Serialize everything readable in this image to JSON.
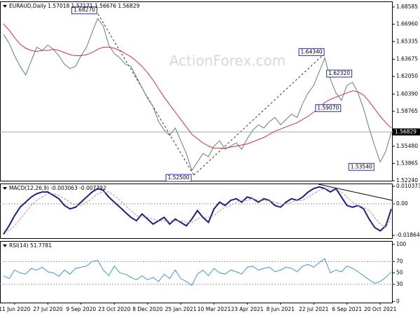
{
  "chart_data": [
    {
      "type": "line",
      "title": "EURAUD,Daily  1.57018 1.57171 1.56676 1.56829",
      "watermark": "ActionForex.com",
      "xlim": [
        0,
        70
      ],
      "ylim": [
        1.5224,
        1.6911
      ],
      "yticks": [
        {
          "value": 1.68585,
          "label": "1.68585"
        },
        {
          "value": 1.6696,
          "label": "1.66960"
        },
        {
          "value": 1.65335,
          "label": "1.65335"
        },
        {
          "value": 1.63675,
          "label": "1.63675"
        },
        {
          "value": 1.6205,
          "label": "1.62050"
        },
        {
          "value": 1.6039,
          "label": "1.60390"
        },
        {
          "value": 1.58765,
          "label": "1.58765"
        },
        {
          "value": 1.5548,
          "label": "1.55480"
        },
        {
          "value": 1.53865,
          "label": "1.53865"
        },
        {
          "value": 1.5224,
          "label": "1.52240"
        }
      ],
      "last_value": 1.56829,
      "annotations": [
        {
          "x": 17,
          "value": 1.6827,
          "label": "1.68270"
        },
        {
          "x": 34,
          "value": 1.525,
          "label": "1.52500"
        },
        {
          "x": 58,
          "value": 1.6434,
          "label": "1.64340"
        },
        {
          "x": 63,
          "value": 1.6232,
          "label": "1.62320"
        },
        {
          "x": 61,
          "value": 1.5907,
          "label": "1.59070"
        },
        {
          "x": 67,
          "value": 1.5354,
          "label": "1.53540"
        }
      ],
      "series": [
        {
          "name": "EURAUD",
          "color": "#5e7f8d",
          "values": [
            1.66,
            1.652,
            1.64,
            1.63,
            1.622,
            1.635,
            1.648,
            1.645,
            1.65,
            1.646,
            1.64,
            1.632,
            1.628,
            1.63,
            1.64,
            1.648,
            1.662,
            1.675,
            1.668,
            1.65,
            1.642,
            1.638,
            1.632,
            1.63,
            1.62,
            1.61,
            1.6,
            1.592,
            1.578,
            1.57,
            1.565,
            1.572,
            1.56,
            1.548,
            1.532,
            1.54,
            1.548,
            1.545,
            1.555,
            1.56,
            1.552,
            1.555,
            1.558,
            1.552,
            1.562,
            1.57,
            1.575,
            1.572,
            1.578,
            1.582,
            1.575,
            1.58,
            1.585,
            1.582,
            1.595,
            1.605,
            1.612,
            1.625,
            1.638,
            1.618,
            1.605,
            1.598,
            1.612,
            1.615,
            1.605,
            1.59,
            1.572,
            1.555,
            1.54,
            1.55,
            1.568
          ]
        },
        {
          "name": "MA",
          "color": "#e03030",
          "values": [
            1.67,
            1.664,
            1.657,
            1.651,
            1.647,
            1.645,
            1.644,
            1.645,
            1.645,
            1.646,
            1.645,
            1.643,
            1.641,
            1.64,
            1.64,
            1.641,
            1.643,
            1.646,
            1.648,
            1.648,
            1.647,
            1.645,
            1.642,
            1.639,
            1.635,
            1.63,
            1.624,
            1.617,
            1.609,
            1.601,
            1.594,
            1.587,
            1.58,
            1.573,
            1.566,
            1.562,
            1.558,
            1.555,
            1.553,
            1.553,
            1.553,
            1.554,
            1.555,
            1.556,
            1.557,
            1.559,
            1.561,
            1.563,
            1.566,
            1.569,
            1.571,
            1.573,
            1.575,
            1.577,
            1.58,
            1.583,
            1.587,
            1.591,
            1.596,
            1.599,
            1.601,
            1.603,
            1.605,
            1.607,
            1.606,
            1.603,
            1.597,
            1.59,
            1.583,
            1.577,
            1.572
          ]
        }
      ]
    },
    {
      "type": "line",
      "title": "MACD(12,26,9) -0.003063 -0.007792",
      "xlim": [
        0,
        70
      ],
      "ylim": [
        -0.0203,
        0.012
      ],
      "yticks": [
        0.010373,
        {
          "value": 0,
          "label": "0.00"
        },
        -0.018643
      ],
      "series": [
        {
          "name": "MACD",
          "color": "#1b1f8a",
          "width": 2,
          "values": [
            -0.018,
            -0.013,
            -0.007,
            -0.002,
            0.001,
            0.004,
            0.006,
            0.007,
            0.007,
            0.005,
            0.003,
            -0.001,
            -0.003,
            -0.002,
            0.001,
            0.004,
            0.007,
            0.009,
            0.008,
            0.004,
            0.001,
            -0.002,
            -0.005,
            -0.008,
            -0.01,
            -0.006,
            -0.009,
            -0.012,
            -0.01,
            -0.008,
            -0.012,
            -0.009,
            -0.011,
            -0.013,
            -0.009,
            -0.004,
            -0.008,
            -0.011,
            -0.003,
            0.001,
            -0.001,
            0.002,
            0.003,
            0.001,
            0.004,
            0.003,
            0.001,
            0.003,
            0.002,
            -0.001,
            -0.002,
            0.001,
            0.003,
            0.002,
            0.004,
            0.007,
            0.009,
            0.01,
            0.009,
            0.007,
            0.009,
            0.004,
            -0.001,
            -0.002,
            -0.001,
            -0.003,
            -0.009,
            -0.014,
            -0.016,
            -0.013,
            -0.003063
          ]
        },
        {
          "name": "Signal",
          "color": "#e08080",
          "dash": true,
          "values": [
            -0.016,
            -0.016,
            -0.013,
            -0.009,
            -0.005,
            -0.001,
            0.002,
            0.004,
            0.006,
            0.006,
            0.005,
            0.003,
            0.001,
            -0.001,
            -0.001,
            0.001,
            0.003,
            0.006,
            0.007,
            0.007,
            0.005,
            0.002,
            -0.001,
            -0.004,
            -0.007,
            -0.008,
            -0.008,
            -0.009,
            -0.01,
            -0.01,
            -0.01,
            -0.01,
            -0.01,
            -0.011,
            -0.011,
            -0.009,
            -0.008,
            -0.008,
            -0.007,
            -0.004,
            -0.002,
            -0.001,
            0.001,
            0.002,
            0.002,
            0.003,
            0.002,
            0.002,
            0.002,
            0.001,
            0.0,
            0.0,
            0.001,
            0.002,
            0.002,
            0.004,
            0.006,
            0.008,
            0.009,
            0.009,
            0.008,
            0.007,
            0.004,
            0.001,
            -0.001,
            -0.002,
            -0.004,
            -0.008,
            -0.012,
            -0.014,
            -0.007792
          ]
        }
      ]
    },
    {
      "type": "line",
      "title": "RSI(14) 51.7781",
      "xlim": [
        0,
        70
      ],
      "ylim": [
        -2,
        106
      ],
      "yticks": [
        100,
        70,
        50,
        30,
        0
      ],
      "xticks": [
        {
          "value": 2,
          "label": "11 Jun 2020"
        },
        {
          "value": 8,
          "label": "27 Jul 2020"
        },
        {
          "value": 14,
          "label": "9 Sep 2020"
        },
        {
          "value": 20,
          "label": "23 Oct 2020"
        },
        {
          "value": 26,
          "label": "8 Dec 2020"
        },
        {
          "value": 32,
          "label": "25 Jan 2021"
        },
        {
          "value": 38,
          "label": "10 Mar 2021"
        },
        {
          "value": 44,
          "label": "23 Apr 2021"
        },
        {
          "value": 50,
          "label": "8 Jun 2021"
        },
        {
          "value": 56,
          "label": "22 Jul 2021"
        },
        {
          "value": 62,
          "label": "6 Sep 2021"
        },
        {
          "value": 68,
          "label": "20 Oct 2021"
        }
      ],
      "series": [
        {
          "name": "RSI",
          "color": "#3a9ad9",
          "values": [
            45,
            40,
            55,
            50,
            48,
            58,
            55,
            60,
            52,
            50,
            44,
            55,
            48,
            58,
            60,
            62,
            70,
            72,
            55,
            45,
            62,
            50,
            48,
            42,
            38,
            45,
            38,
            42,
            35,
            48,
            40,
            55,
            40,
            35,
            28,
            48,
            55,
            45,
            58,
            50,
            48,
            55,
            52,
            48,
            60,
            62,
            55,
            58,
            60,
            52,
            55,
            60,
            58,
            52,
            62,
            65,
            60,
            68,
            75,
            50,
            55,
            52,
            62,
            58,
            52,
            45,
            38,
            32,
            35,
            42,
            51.7781
          ]
        }
      ]
    }
  ]
}
